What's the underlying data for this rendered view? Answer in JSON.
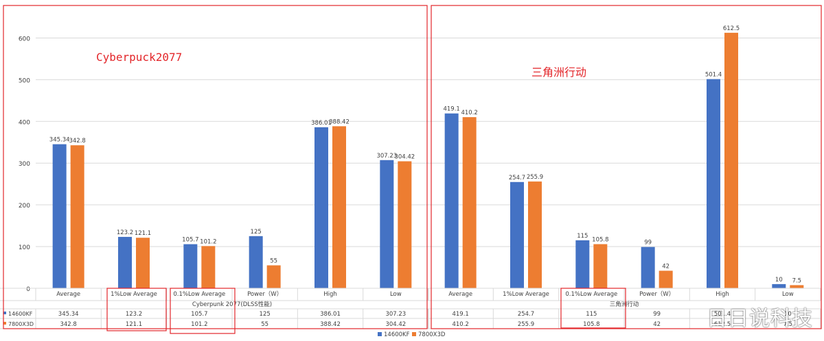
{
  "annotations": {
    "left_title": "Cyberpuck2077",
    "right_title": "三角洲行动",
    "watermark": "日日说科技"
  },
  "colors": {
    "series_1": "#4472c4",
    "series_2": "#ed7d31",
    "highlight_box": "#e3262a",
    "grid": "#d9d9d9",
    "text": "#404040"
  },
  "legend": [
    "14600KF",
    "7800X3D"
  ],
  "chart_data": [
    {
      "type": "bar",
      "title": "",
      "group_label": "Cyberpunk 2077(DLSS性能)",
      "categories": [
        "Average",
        "1%Low Average",
        "0.1%Low Average",
        "Power（W）",
        "High",
        "Low"
      ],
      "series": [
        {
          "name": "14600KF",
          "values": [
            345.34,
            123.2,
            105.7,
            125,
            386.01,
            307.23
          ]
        },
        {
          "name": "7800X3D",
          "values": [
            342.8,
            121.1,
            101.2,
            55,
            388.42,
            304.42
          ]
        }
      ],
      "value_labels": [
        [
          "345.34",
          "123.2",
          "105.7",
          "125",
          "386.01",
          "307.23"
        ],
        [
          "342.8",
          "121.1",
          "101.2",
          "55",
          "388.42",
          "304.42"
        ]
      ],
      "ylim": [
        0,
        650
      ],
      "yticks": [
        "0",
        "100",
        "200",
        "300",
        "400",
        "500",
        "600"
      ],
      "grid": true,
      "legend_position": "bottom"
    },
    {
      "type": "bar",
      "title": "",
      "group_label": "三角洲行动",
      "categories": [
        "Average",
        "1%Low Average",
        "0.1%Low Average",
        "Power（W）",
        "High",
        "Low"
      ],
      "series": [
        {
          "name": "14600KF",
          "values": [
            419.1,
            254.7,
            115,
            99,
            501.4,
            10
          ]
        },
        {
          "name": "7800X3D",
          "values": [
            410.2,
            255.9,
            105.8,
            42,
            612.5,
            7.5
          ]
        }
      ],
      "value_labels": [
        [
          "419.1",
          "254.7",
          "115",
          "99",
          "501.4",
          "10"
        ],
        [
          "410.2",
          "255.9",
          "105.8",
          "42",
          "612.5",
          "7.5"
        ]
      ],
      "ylim": [
        0,
        650
      ],
      "yticks": [
        "0",
        "100",
        "200",
        "300",
        "400",
        "500",
        "600"
      ],
      "grid": true,
      "legend_position": "bottom"
    }
  ]
}
